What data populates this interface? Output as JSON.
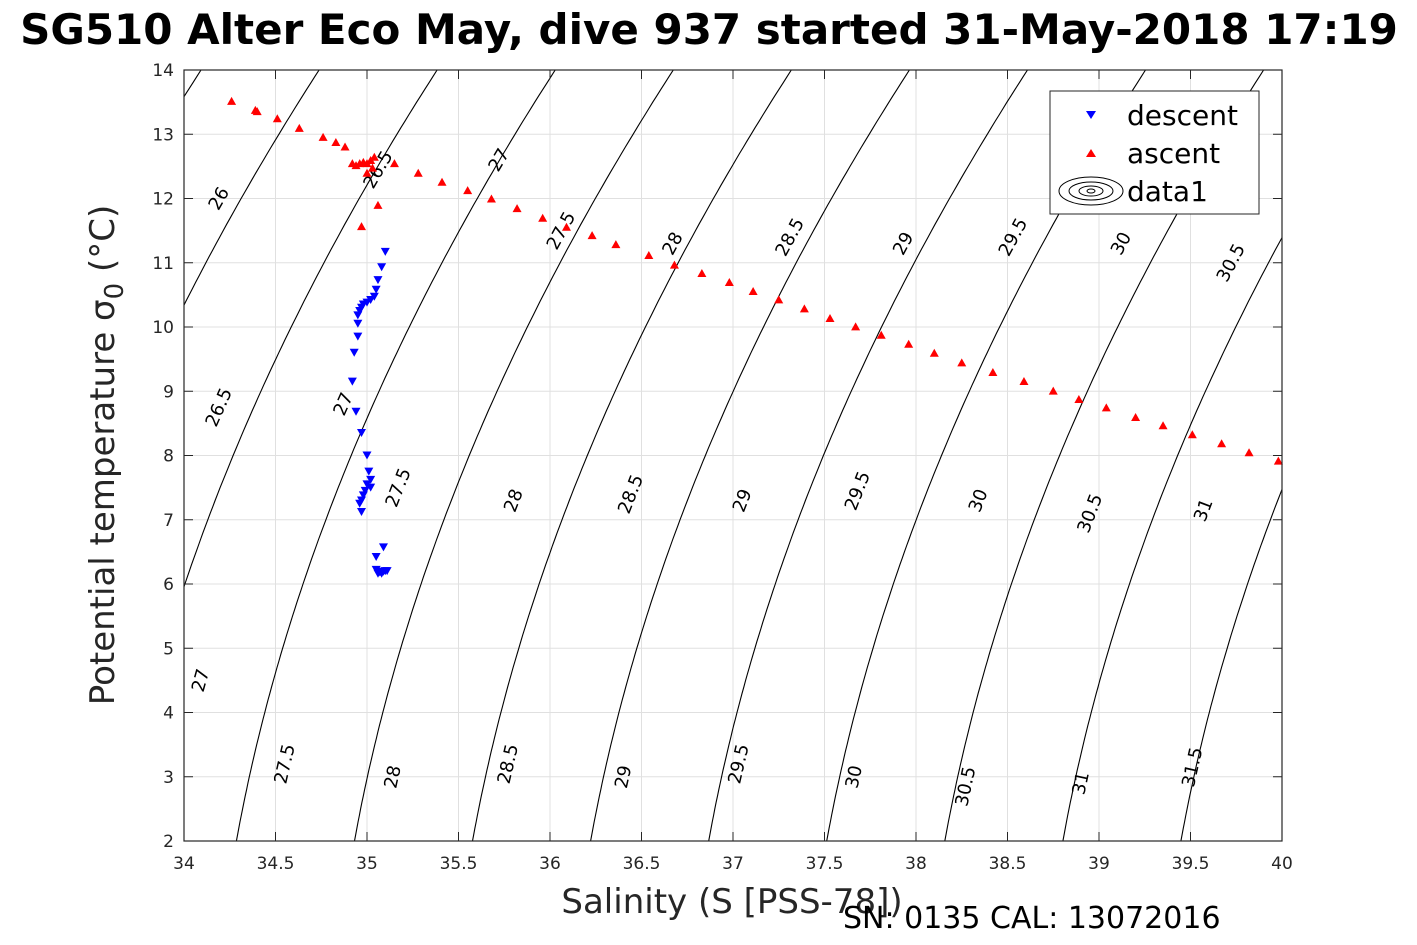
{
  "chart_data": {
    "type": "scatter",
    "title": "SG510 Alter Eco May, dive 937 started 31-May-2018 17:19",
    "xlabel": "Salinity (S [PSS-78])",
    "ylabel_main": "Potential temperature σ",
    "ylabel_sub": "0",
    "ylabel_unit": " (°C)",
    "xlim": [
      34,
      40
    ],
    "ylim": [
      2,
      14
    ],
    "xticks": [
      "34",
      "34.5",
      "35",
      "35.5",
      "36",
      "36.5",
      "37",
      "37.5",
      "38",
      "38.5",
      "39",
      "39.5",
      "40"
    ],
    "yticks": [
      "2",
      "3",
      "4",
      "5",
      "6",
      "7",
      "8",
      "9",
      "10",
      "11",
      "12",
      "13",
      "14"
    ],
    "grid": true,
    "legend_position": "top-right",
    "legend": [
      "descent",
      "ascent",
      "data1"
    ],
    "annotation": "SN: 0135  CAL: 13072016",
    "colors": {
      "descent": "#0000ff",
      "ascent": "#ff0000",
      "contour": "#000000",
      "grid": "#e0e0e0",
      "axis": "#262626"
    },
    "series": [
      {
        "name": "descent",
        "marker": "triangle-down",
        "points": [
          [
            35.1,
            11.17
          ],
          [
            35.08,
            10.93
          ],
          [
            35.06,
            10.73
          ],
          [
            35.05,
            10.58
          ],
          [
            35.04,
            10.47
          ],
          [
            35.02,
            10.42
          ],
          [
            35.0,
            10.38
          ],
          [
            34.98,
            10.35
          ],
          [
            34.97,
            10.3
          ],
          [
            34.96,
            10.25
          ],
          [
            34.95,
            10.18
          ],
          [
            34.95,
            10.05
          ],
          [
            34.95,
            9.85
          ],
          [
            34.93,
            9.6
          ],
          [
            34.92,
            9.15
          ],
          [
            34.94,
            8.68
          ],
          [
            34.97,
            8.35
          ],
          [
            35.0,
            8.0
          ],
          [
            35.01,
            7.75
          ],
          [
            35.02,
            7.62
          ],
          [
            35.0,
            7.55
          ],
          [
            35.02,
            7.5
          ],
          [
            34.99,
            7.45
          ],
          [
            34.98,
            7.38
          ],
          [
            34.97,
            7.3
          ],
          [
            34.96,
            7.25
          ],
          [
            34.97,
            7.12
          ],
          [
            35.05,
            6.42
          ],
          [
            35.09,
            6.57
          ],
          [
            35.05,
            6.22
          ],
          [
            35.06,
            6.19
          ],
          [
            35.07,
            6.18
          ],
          [
            35.08,
            6.18
          ],
          [
            35.09,
            6.19
          ],
          [
            35.1,
            6.2
          ],
          [
            35.11,
            6.2
          ],
          [
            35.06,
            6.16
          ],
          [
            35.08,
            6.16
          ]
        ]
      },
      {
        "name": "ascent",
        "marker": "triangle-up",
        "points": [
          [
            34.26,
            13.52
          ],
          [
            34.39,
            13.38
          ],
          [
            34.4,
            13.36
          ],
          [
            34.51,
            13.25
          ],
          [
            34.63,
            13.1
          ],
          [
            34.76,
            12.96
          ],
          [
            34.83,
            12.88
          ],
          [
            34.88,
            12.81
          ],
          [
            34.92,
            12.55
          ],
          [
            34.94,
            12.52
          ],
          [
            34.96,
            12.55
          ],
          [
            34.98,
            12.57
          ],
          [
            35.0,
            12.55
          ],
          [
            35.02,
            12.6
          ],
          [
            35.04,
            12.65
          ],
          [
            35.0,
            12.4
          ],
          [
            35.03,
            12.48
          ],
          [
            35.06,
            11.9
          ],
          [
            34.97,
            11.57
          ],
          [
            35.15,
            12.55
          ],
          [
            35.28,
            12.4
          ],
          [
            35.41,
            12.26
          ],
          [
            35.55,
            12.13
          ],
          [
            35.68,
            12.0
          ],
          [
            35.82,
            11.85
          ],
          [
            35.96,
            11.7
          ],
          [
            36.09,
            11.56
          ],
          [
            36.23,
            11.43
          ],
          [
            36.36,
            11.29
          ],
          [
            36.54,
            11.12
          ],
          [
            36.68,
            10.97
          ],
          [
            36.83,
            10.84
          ],
          [
            36.98,
            10.7
          ],
          [
            37.11,
            10.56
          ],
          [
            37.25,
            10.43
          ],
          [
            37.39,
            10.29
          ],
          [
            37.53,
            10.14
          ],
          [
            37.67,
            10.01
          ],
          [
            37.81,
            9.88
          ],
          [
            37.96,
            9.74
          ],
          [
            38.1,
            9.6
          ],
          [
            38.25,
            9.45
          ],
          [
            38.42,
            9.3
          ],
          [
            38.59,
            9.16
          ],
          [
            38.75,
            9.01
          ],
          [
            38.89,
            8.88
          ],
          [
            39.04,
            8.75
          ],
          [
            39.2,
            8.6
          ],
          [
            39.35,
            8.47
          ],
          [
            39.51,
            8.33
          ],
          [
            39.67,
            8.19
          ],
          [
            39.82,
            8.05
          ],
          [
            39.98,
            7.92
          ]
        ]
      }
    ],
    "contour_levels": [
      "26",
      "26.5",
      "27",
      "27.5",
      "28",
      "28.5",
      "29",
      "29.5",
      "30",
      "30.5",
      "31",
      "31.5"
    ],
    "contour_inline_labels": [
      {
        "text": "26",
        "s": 34.19,
        "t": 12.0
      },
      {
        "text": "26.5",
        "s": 35.06,
        "t": 12.45
      },
      {
        "text": "27",
        "s": 35.72,
        "t": 12.6
      },
      {
        "text": "27.5",
        "s": 36.06,
        "t": 11.5
      },
      {
        "text": "28",
        "s": 36.67,
        "t": 11.3
      },
      {
        "text": "28.5",
        "s": 37.31,
        "t": 11.4
      },
      {
        "text": "29",
        "s": 37.93,
        "t": 11.3
      },
      {
        "text": "29.5",
        "s": 38.53,
        "t": 11.4
      },
      {
        "text": "30",
        "s": 39.12,
        "t": 11.3
      },
      {
        "text": "30.5",
        "s": 39.72,
        "t": 11.0
      },
      {
        "text": "26.5",
        "s": 34.19,
        "t": 8.75
      },
      {
        "text": "27",
        "s": 34.87,
        "t": 8.8
      },
      {
        "text": "27.5",
        "s": 35.17,
        "t": 7.5
      },
      {
        "text": "28",
        "s": 35.8,
        "t": 7.3
      },
      {
        "text": "28.5",
        "s": 36.44,
        "t": 7.4
      },
      {
        "text": "29",
        "s": 37.05,
        "t": 7.3
      },
      {
        "text": "29.5",
        "s": 37.68,
        "t": 7.45
      },
      {
        "text": "30",
        "s": 38.34,
        "t": 7.3
      },
      {
        "text": "30.5",
        "s": 38.95,
        "t": 7.1
      },
      {
        "text": "31",
        "s": 39.57,
        "t": 7.15
      },
      {
        "text": "27",
        "s": 34.09,
        "t": 4.5
      },
      {
        "text": "27.5",
        "s": 34.55,
        "t": 3.2
      },
      {
        "text": "28",
        "s": 35.14,
        "t": 3.0
      },
      {
        "text": "28.5",
        "s": 35.77,
        "t": 3.2
      },
      {
        "text": "29",
        "s": 36.4,
        "t": 3.0
      },
      {
        "text": "29.5",
        "s": 37.03,
        "t": 3.2
      },
      {
        "text": "30",
        "s": 37.66,
        "t": 3.0
      },
      {
        "text": "30.5",
        "s": 38.27,
        "t": 2.85
      },
      {
        "text": "31",
        "s": 38.9,
        "t": 2.9
      },
      {
        "text": "31.5",
        "s": 39.51,
        "t": 3.15
      }
    ]
  }
}
